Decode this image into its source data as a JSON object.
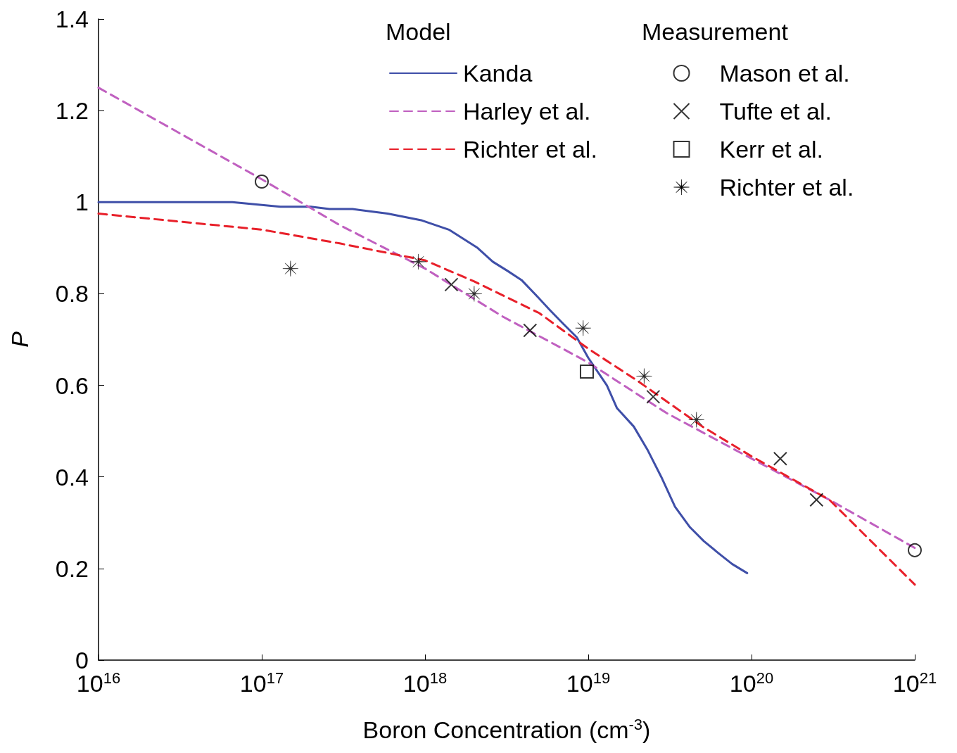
{
  "chart_data": {
    "type": "line",
    "xlabel": "Boron Concentration (cm$^{-3}$)",
    "ylabel": "P",
    "log": "x",
    "grid": false,
    "legend": "top right",
    "xlim": [
      1e+16,
      1e+21
    ],
    "xticks": [
      {
        "value": 1e+16,
        "label": "10$^{16}$"
      },
      {
        "value": 1e+17,
        "label": "10$^{17}$"
      },
      {
        "value": 1e+18,
        "label": "10$^{18}$"
      },
      {
        "value": 1e+19,
        "label": "10$^{19}$"
      },
      {
        "value": 1e+20,
        "label": "10$^{20}$"
      },
      {
        "value": 1e+21,
        "label": "10$^{21}$"
      }
    ],
    "ylim": [
      0,
      1.4
    ],
    "yticks": [
      0,
      0.2,
      0.4,
      0.6,
      0.8,
      1,
      1.2,
      1.4
    ],
    "annotations": [
      "Model",
      "Measurement"
    ],
    "series": [
      {
        "name": "Kanda",
        "type": "line",
        "color": "#3f4fa8",
        "line_style": "solid",
        "marker": "none",
        "x": [
          1e+16,
          4.9e+16,
          6.6e+16,
          1.3e+17,
          2e+17,
          2.6e+17,
          3.6e+17,
          5.9e+17,
          9.6e+17,
          1.4e+18,
          2.1e+18,
          2.6e+18,
          3.2e+18,
          3.9e+18,
          4.7e+18,
          5.8e+18,
          7e+18,
          8.5e+18,
          1e+19,
          1.3e+19,
          1.5e+19,
          1.9e+19,
          2.3e+19,
          2.8e+19,
          3.4e+19,
          4.2e+19,
          5.1e+19,
          6.2e+19,
          7.6e+19,
          9.4e+19
        ],
        "values": [
          1.0,
          1.0,
          1.0,
          0.99,
          0.99,
          0.985,
          0.985,
          0.975,
          0.96,
          0.94,
          0.9,
          0.87,
          0.85,
          0.83,
          0.8,
          0.765,
          0.735,
          0.705,
          0.66,
          0.6,
          0.55,
          0.51,
          0.46,
          0.4,
          0.335,
          0.29,
          0.26,
          0.235,
          0.21,
          0.19
        ]
      },
      {
        "name": "Harley et al.",
        "type": "line",
        "color": "#c060c0",
        "line_style": "dashed",
        "marker": "none",
        "x": [
          1e+16,
          1e+17,
          3e+17,
          1e+18,
          3e+18,
          1e+19,
          3e+19,
          1e+20,
          3e+20,
          1e+21
        ],
        "values": [
          1.25,
          1.05,
          0.95,
          0.855,
          0.75,
          0.65,
          0.54,
          0.44,
          0.35,
          0.245
        ]
      },
      {
        "name": "Richter et al.",
        "type": "line",
        "color": "#e8202a",
        "line_style": "dashed",
        "marker": "none",
        "x": [
          1e+16,
          1e+17,
          3e+17,
          1e+18,
          2e+18,
          5e+18,
          1e+19,
          2e+19,
          5e+19,
          1e+20,
          3e+20,
          1e+21
        ],
        "values": [
          0.975,
          0.94,
          0.91,
          0.873,
          0.827,
          0.758,
          0.68,
          0.61,
          0.51,
          0.445,
          0.35,
          0.165
        ]
      },
      {
        "name": "Mason et al.",
        "type": "scatter",
        "color": "#000000",
        "marker": "circle",
        "x": [
          1e+17,
          1e+21
        ],
        "values": [
          1.045,
          0.24
        ]
      },
      {
        "name": "Tufte et al.",
        "type": "scatter",
        "color": "#000000",
        "marker": "cross",
        "x": [
          1.45e+18,
          4.4e+18,
          2.5e+19,
          1.5e+20,
          2.5e+20
        ],
        "values": [
          0.82,
          0.72,
          0.575,
          0.44,
          0.35
        ]
      },
      {
        "name": "Kerr et al.",
        "type": "scatter",
        "color": "#000000",
        "marker": "square",
        "x": [
          9.8e+18
        ],
        "values": [
          0.63
        ]
      },
      {
        "name": "Richter et al.",
        "type": "scatter",
        "color": "#000000",
        "marker": "star",
        "x": [
          1.5e+17,
          9.1e+17,
          2e+18,
          9.3e+18,
          2.2e+19,
          4.6e+19
        ],
        "values": [
          0.855,
          0.87,
          0.8,
          0.725,
          0.62,
          0.525
        ]
      }
    ]
  }
}
